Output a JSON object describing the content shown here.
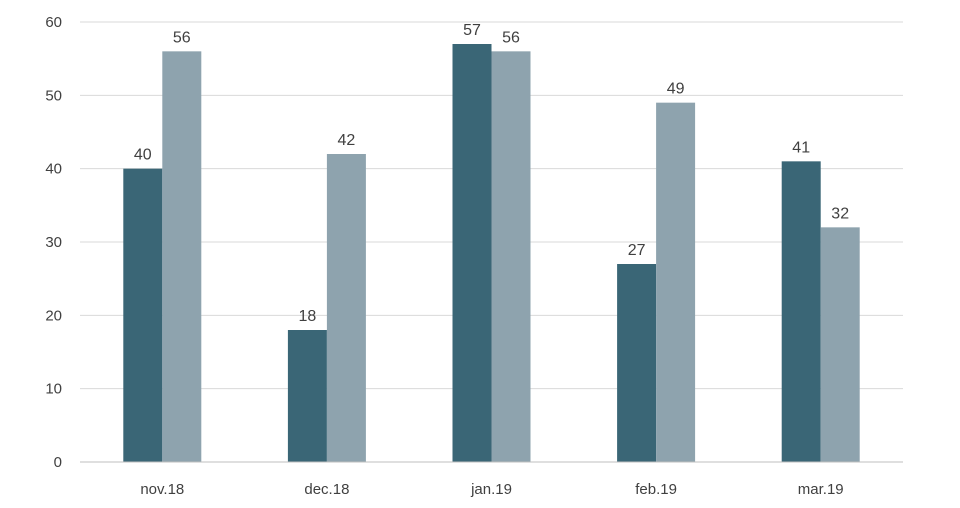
{
  "chart_data": {
    "type": "bar",
    "categories": [
      "nov.18",
      "dec.18",
      "jan.19",
      "feb.19",
      "mar.19"
    ],
    "series": [
      {
        "values": [
          40,
          18,
          57,
          27,
          41
        ],
        "color": "#3a6676"
      },
      {
        "values": [
          56,
          42,
          56,
          49,
          32
        ],
        "color": "#8ea3ae"
      }
    ],
    "title": "",
    "xlabel": "",
    "ylabel": "",
    "ylim": [
      0,
      60
    ],
    "yticks": [
      "0",
      "10",
      "20",
      "30",
      "40",
      "50",
      "60"
    ],
    "grid": true,
    "legend": "none",
    "data_labels": true
  }
}
